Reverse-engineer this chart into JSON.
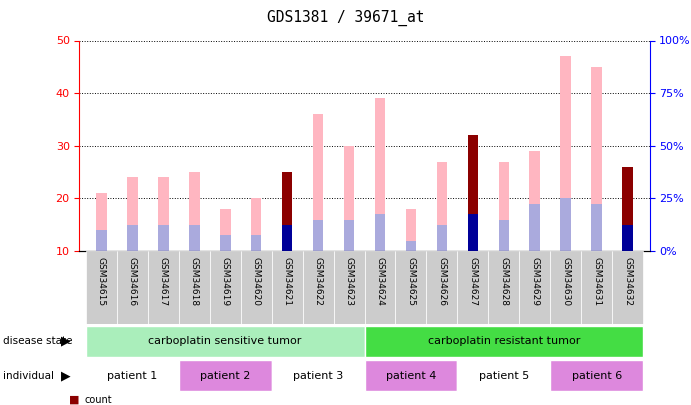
{
  "title": "GDS1381 / 39671_at",
  "samples": [
    "GSM34615",
    "GSM34616",
    "GSM34617",
    "GSM34618",
    "GSM34619",
    "GSM34620",
    "GSM34621",
    "GSM34622",
    "GSM34623",
    "GSM34624",
    "GSM34625",
    "GSM34626",
    "GSM34627",
    "GSM34628",
    "GSM34629",
    "GSM34630",
    "GSM34631",
    "GSM34632"
  ],
  "value_absent": [
    21,
    24,
    24,
    25,
    18,
    20,
    25,
    36,
    30,
    39,
    18,
    27,
    32,
    27,
    29,
    47,
    45,
    26
  ],
  "rank_absent": [
    14,
    15,
    15,
    15,
    13,
    13,
    15,
    16,
    16,
    17,
    12,
    15,
    17,
    16,
    19,
    20,
    19,
    15
  ],
  "count": [
    0,
    0,
    0,
    0,
    0,
    0,
    25,
    0,
    0,
    0,
    0,
    0,
    32,
    0,
    0,
    0,
    0,
    26
  ],
  "percentile": [
    0,
    0,
    0,
    0,
    0,
    0,
    15,
    0,
    0,
    0,
    0,
    0,
    17,
    0,
    0,
    0,
    0,
    15
  ],
  "ylim_left": [
    10,
    50
  ],
  "ylim_right": [
    0,
    100
  ],
  "yticks_left": [
    10,
    20,
    30,
    40,
    50
  ],
  "yticks_right": [
    0,
    25,
    50,
    75,
    100
  ],
  "color_count": "#8B0000",
  "color_percentile": "#000099",
  "color_value_absent": "#FFB6C1",
  "color_rank_absent": "#AAAADD",
  "disease_state_labels": [
    "carboplatin sensitive tumor",
    "carboplatin resistant tumor"
  ],
  "disease_state_colors": [
    "#AAEEBB",
    "#44DD44"
  ],
  "disease_state_ranges": [
    [
      0,
      9
    ],
    [
      9,
      18
    ]
  ],
  "individual_labels": [
    "patient 1",
    "patient 2",
    "patient 3",
    "patient 4",
    "patient 5",
    "patient 6"
  ],
  "individual_ranges": [
    [
      0,
      3
    ],
    [
      3,
      6
    ],
    [
      6,
      9
    ],
    [
      9,
      12
    ],
    [
      12,
      15
    ],
    [
      15,
      18
    ]
  ],
  "individual_bg_colors": [
    "#FFFFFF",
    "#DD88DD",
    "#FFFFFF",
    "#DD88DD",
    "#FFFFFF",
    "#DD88DD"
  ],
  "bar_width": 0.35
}
